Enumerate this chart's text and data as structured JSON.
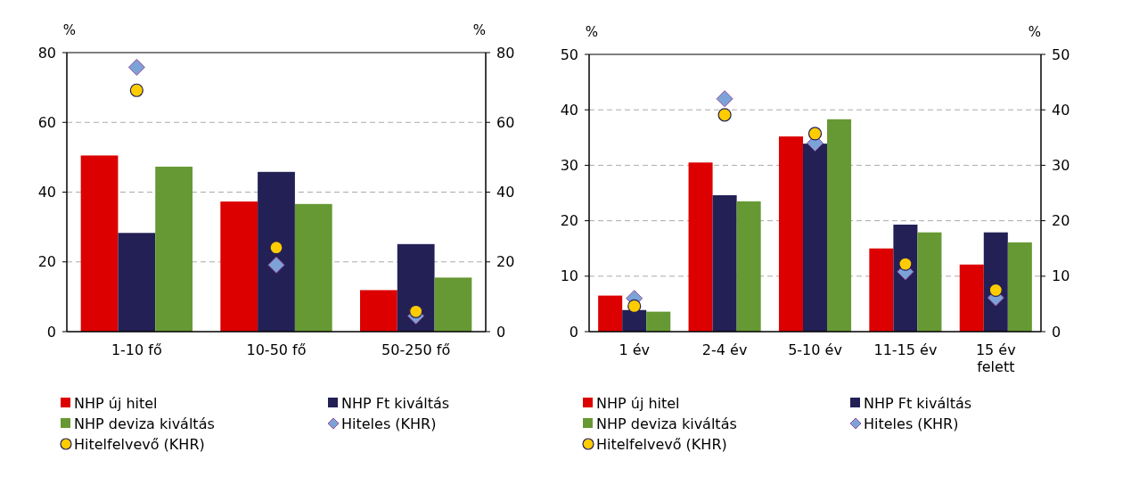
{
  "chart_data": [
    {
      "type": "bar",
      "ylabel": "%",
      "y2label": "%",
      "categories": [
        "1-10 fő",
        "10-50 fő",
        "50-250 fő"
      ],
      "ylim": [
        0,
        80
      ],
      "yticks": [
        0,
        20,
        40,
        60,
        80
      ],
      "y2lim": [
        0,
        80
      ],
      "y2ticks": [
        0,
        20,
        40,
        60,
        80
      ],
      "grid": "y",
      "legend": "bottom",
      "series": [
        {
          "name": "NHP új hitel",
          "color": "#dc0000",
          "values": [
            50.5,
            37.3,
            11.9
          ]
        },
        {
          "name": "NHP Ft kiváltás",
          "color": "#232056",
          "values": [
            28.3,
            45.8,
            25.1
          ]
        },
        {
          "name": "NHP deviza kiváltás",
          "color": "#669933",
          "values": [
            47.3,
            36.6,
            15.5
          ]
        },
        {
          "name": "Hiteles (KHR)",
          "type": "scatter",
          "marker": "diamond",
          "color": "#7ba3d8",
          "x": [
            "1-10 fő",
            "10-50 fő",
            "50-250 fő"
          ],
          "values": [
            75.8,
            19.1,
            4.5
          ]
        },
        {
          "name": "Hitelfelvevő (KHR)",
          "type": "scatter",
          "marker": "circle",
          "color": "#ffcc00",
          "x": [
            "1-10 fő",
            "10-50 fő",
            "50-250 fő"
          ],
          "values": [
            69.2,
            24.1,
            5.8
          ]
        }
      ]
    },
    {
      "type": "bar",
      "ylabel": "%",
      "y2label": "%",
      "categories": [
        "1 év",
        "2-4 év",
        "5-10 év",
        "11-15 év",
        "15 év felett"
      ],
      "ylim": [
        0,
        50
      ],
      "yticks": [
        0,
        10,
        20,
        30,
        40,
        50
      ],
      "y2lim": [
        0,
        50
      ],
      "y2ticks": [
        0,
        10,
        20,
        30,
        40,
        50
      ],
      "grid": "y",
      "legend": "bottom",
      "series": [
        {
          "name": "NHP új hitel",
          "color": "#dc0000",
          "values": [
            6.5,
            30.5,
            35.2,
            15.0,
            12.1
          ]
        },
        {
          "name": "NHP Ft kiváltás",
          "color": "#232056",
          "values": [
            3.9,
            24.6,
            33.9,
            19.3,
            17.9
          ]
        },
        {
          "name": "NHP deviza kiváltás",
          "color": "#669933",
          "values": [
            3.6,
            23.5,
            38.3,
            17.9,
            16.1
          ]
        },
        {
          "name": "Hiteles (KHR)",
          "type": "scatter",
          "marker": "diamond",
          "color": "#7ba3d8",
          "x": [
            "1 év",
            "2-4 év",
            "5-10 év",
            "11-15 év",
            "15 év felett"
          ],
          "values": [
            6.0,
            42.0,
            34.0,
            10.8,
            6.1
          ]
        },
        {
          "name": "Hitelfelvevő (KHR)",
          "type": "scatter",
          "marker": "circle",
          "color": "#ffcc00",
          "x": [
            "1 év",
            "2-4 év",
            "5-10 év",
            "11-15 év",
            "15 év felett"
          ],
          "values": [
            4.6,
            39.1,
            35.7,
            12.2,
            7.5
          ]
        }
      ]
    }
  ]
}
